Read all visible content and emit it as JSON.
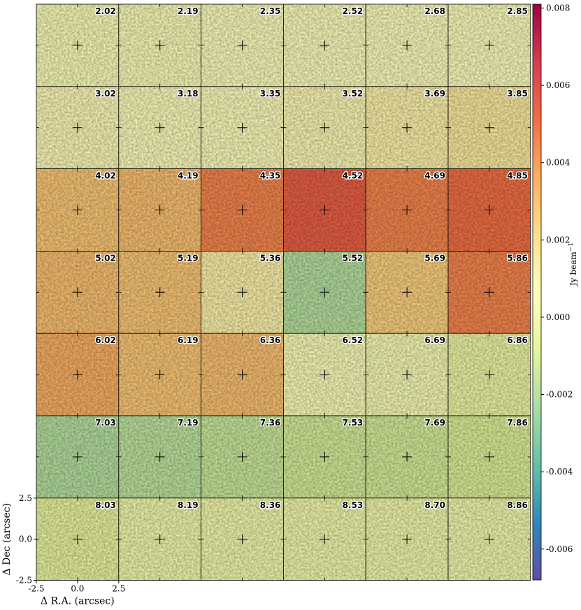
{
  "chart_data": {
    "type": "heatmap",
    "title": "",
    "grid_rows": 7,
    "grid_cols": 6,
    "panel_labels": [
      "2.02",
      "2.19",
      "2.35",
      "2.52",
      "2.68",
      "2.85",
      "3.02",
      "3.18",
      "3.35",
      "3.52",
      "3.69",
      "3.85",
      "4.02",
      "4.19",
      "4.35",
      "4.52",
      "4.69",
      "4.85",
      "5.02",
      "5.19",
      "5.36",
      "5.52",
      "5.69",
      "5.86",
      "6.02",
      "6.19",
      "6.36",
      "6.52",
      "6.69",
      "6.86",
      "7.03",
      "7.19",
      "7.36",
      "7.53",
      "7.69",
      "7.86",
      "8.03",
      "8.19",
      "8.36",
      "8.53",
      "8.70",
      "8.86"
    ],
    "panel_mean_intensity": [
      0.0005,
      0.0005,
      0.0006,
      0.0006,
      0.0006,
      0.0006,
      0.0008,
      0.0007,
      0.0007,
      0.0009,
      0.0012,
      0.0015,
      0.0028,
      0.003,
      0.0045,
      0.0055,
      0.0045,
      0.005,
      0.003,
      0.0028,
      0.0012,
      -0.002,
      0.0025,
      0.0045,
      0.0035,
      0.0028,
      0.003,
      0.0005,
      0.0003,
      -0.0003,
      -0.002,
      -0.0018,
      -0.0015,
      -0.0012,
      -0.0012,
      -0.001,
      -0.0005,
      0.0,
      0.0,
      0.0,
      0.0,
      0.0
    ],
    "xlabel": "Δ R.A. (arcsec)",
    "ylabel": "Δ Dec (arcsec)",
    "xlim": [
      -2.5,
      2.5
    ],
    "ylim": [
      -2.5,
      2.5
    ],
    "xticks": [
      "-2.5",
      "0.0",
      "2.5"
    ],
    "yticks": [
      "2.5",
      "0.0",
      "-2.5"
    ],
    "colorbar": {
      "label": "Jy beam",
      "label_exponent": "−1",
      "range": [
        -0.0068,
        0.0081
      ],
      "ticks": [
        "0.008",
        "0.006",
        "0.004",
        "0.002",
        "0.000",
        "-0.002",
        "-0.004",
        "-0.006"
      ],
      "tick_values": [
        0.008,
        0.006,
        0.004,
        0.002,
        0.0,
        -0.002,
        -0.004,
        -0.006
      ],
      "colormap": "Spectral_r",
      "colors": [
        "#5e4fa2",
        "#3288bd",
        "#66c2a5",
        "#abdda4",
        "#e6f598",
        "#ffffbf",
        "#fee08b",
        "#fdae61",
        "#f46d43",
        "#d53e4f",
        "#9e0142"
      ]
    },
    "grid": false
  }
}
